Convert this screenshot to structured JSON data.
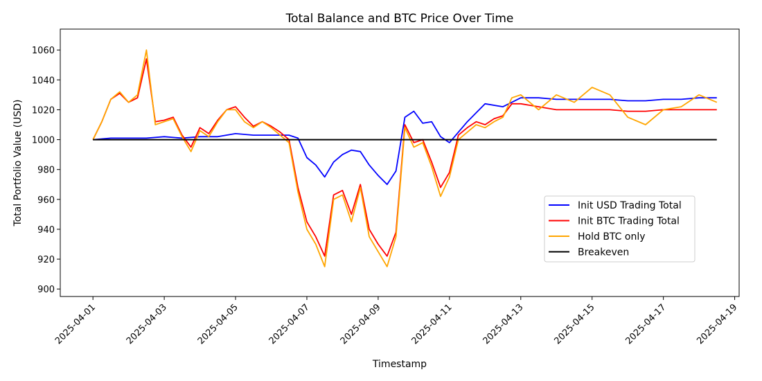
{
  "chart_data": {
    "type": "line",
    "title": "Total Balance and BTC Price Over Time",
    "xlabel": "Timestamp",
    "ylabel": "Total Portfolio Value (USD)",
    "x_axis": {
      "kind": "date",
      "min": "2025-03-31T02:00",
      "max": "2025-04-19T03:00",
      "ticks": [
        "2025-04-01",
        "2025-04-03",
        "2025-04-05",
        "2025-04-07",
        "2025-04-09",
        "2025-04-11",
        "2025-04-13",
        "2025-04-15",
        "2025-04-17",
        "2025-04-19"
      ]
    },
    "y_axis": {
      "min": 895,
      "max": 1074,
      "ticks": [
        900,
        920,
        940,
        960,
        980,
        1000,
        1020,
        1040,
        1060
      ]
    },
    "grid": false,
    "legend": {
      "placement": "lower-right"
    },
    "series": [
      {
        "name": "Init USD Trading Total",
        "color": "#0000ff",
        "x": [
          "2025-04-01T00:00",
          "2025-04-01T12:00",
          "2025-04-02T00:00",
          "2025-04-02T12:00",
          "2025-04-03T00:00",
          "2025-04-03T12:00",
          "2025-04-04T00:00",
          "2025-04-04T12:00",
          "2025-04-05T00:00",
          "2025-04-05T12:00",
          "2025-04-06T00:00",
          "2025-04-06T12:00",
          "2025-04-06T18:00",
          "2025-04-07T00:00",
          "2025-04-07T06:00",
          "2025-04-07T12:00",
          "2025-04-07T18:00",
          "2025-04-08T00:00",
          "2025-04-08T06:00",
          "2025-04-08T12:00",
          "2025-04-08T18:00",
          "2025-04-09T00:00",
          "2025-04-09T06:00",
          "2025-04-09T12:00",
          "2025-04-09T18:00",
          "2025-04-10T00:00",
          "2025-04-10T06:00",
          "2025-04-10T12:00",
          "2025-04-10T18:00",
          "2025-04-11T00:00",
          "2025-04-11T12:00",
          "2025-04-12T00:00",
          "2025-04-12T12:00",
          "2025-04-13T00:00",
          "2025-04-13T12:00",
          "2025-04-14T00:00",
          "2025-04-14T12:00",
          "2025-04-15T00:00",
          "2025-04-15T12:00",
          "2025-04-16T00:00",
          "2025-04-16T12:00",
          "2025-04-17T00:00",
          "2025-04-17T12:00",
          "2025-04-18T00:00",
          "2025-04-18T12:00"
        ],
        "y": [
          1000,
          1001,
          1001,
          1001,
          1002,
          1001,
          1002,
          1002,
          1004,
          1003,
          1003,
          1003,
          1001,
          988,
          983,
          975,
          985,
          990,
          993,
          992,
          983,
          976,
          970,
          979,
          1015,
          1019,
          1011,
          1012,
          1002,
          998,
          1012,
          1024,
          1022,
          1028,
          1028,
          1027,
          1027,
          1027,
          1027,
          1026,
          1026,
          1027,
          1027,
          1028,
          1028
        ]
      },
      {
        "name": "Init BTC Trading Total",
        "color": "#ff0000",
        "x": [
          "2025-04-01T00:00",
          "2025-04-01T06:00",
          "2025-04-01T12:00",
          "2025-04-01T18:00",
          "2025-04-02T00:00",
          "2025-04-02T06:00",
          "2025-04-02T12:00",
          "2025-04-02T18:00",
          "2025-04-03T00:00",
          "2025-04-03T06:00",
          "2025-04-03T12:00",
          "2025-04-03T18:00",
          "2025-04-04T00:00",
          "2025-04-04T06:00",
          "2025-04-04T12:00",
          "2025-04-04T18:00",
          "2025-04-05T00:00",
          "2025-04-05T06:00",
          "2025-04-05T12:00",
          "2025-04-05T18:00",
          "2025-04-06T00:00",
          "2025-04-06T06:00",
          "2025-04-06T12:00",
          "2025-04-06T18:00",
          "2025-04-07T00:00",
          "2025-04-07T06:00",
          "2025-04-07T12:00",
          "2025-04-07T18:00",
          "2025-04-08T00:00",
          "2025-04-08T06:00",
          "2025-04-08T12:00",
          "2025-04-08T18:00",
          "2025-04-09T00:00",
          "2025-04-09T06:00",
          "2025-04-09T12:00",
          "2025-04-09T18:00",
          "2025-04-10T00:00",
          "2025-04-10T06:00",
          "2025-04-10T12:00",
          "2025-04-10T18:00",
          "2025-04-11T00:00",
          "2025-04-11T06:00",
          "2025-04-11T12:00",
          "2025-04-11T18:00",
          "2025-04-12T00:00",
          "2025-04-12T06:00",
          "2025-04-12T12:00",
          "2025-04-12T18:00",
          "2025-04-13T00:00",
          "2025-04-13T12:00",
          "2025-04-14T00:00",
          "2025-04-14T12:00",
          "2025-04-15T00:00",
          "2025-04-15T12:00",
          "2025-04-16T00:00",
          "2025-04-16T12:00",
          "2025-04-17T00:00",
          "2025-04-17T12:00",
          "2025-04-18T00:00",
          "2025-04-18T12:00"
        ],
        "y": [
          1000,
          1012,
          1027,
          1031,
          1025,
          1028,
          1054,
          1012,
          1013,
          1015,
          1003,
          995,
          1008,
          1004,
          1013,
          1020,
          1022,
          1015,
          1009,
          1012,
          1009,
          1005,
          1000,
          968,
          945,
          935,
          922,
          963,
          966,
          950,
          970,
          940,
          930,
          922,
          938,
          1010,
          998,
          1000,
          985,
          968,
          978,
          1003,
          1008,
          1012,
          1010,
          1014,
          1016,
          1024,
          1024,
          1022,
          1020,
          1020,
          1020,
          1020,
          1019,
          1019,
          1020,
          1020,
          1020,
          1020
        ]
      },
      {
        "name": "Hold BTC only",
        "color": "#ffa500",
        "x": [
          "2025-04-01T00:00",
          "2025-04-01T06:00",
          "2025-04-01T12:00",
          "2025-04-01T18:00",
          "2025-04-02T00:00",
          "2025-04-02T06:00",
          "2025-04-02T12:00",
          "2025-04-02T18:00",
          "2025-04-03T00:00",
          "2025-04-03T06:00",
          "2025-04-03T12:00",
          "2025-04-03T18:00",
          "2025-04-04T00:00",
          "2025-04-04T06:00",
          "2025-04-04T12:00",
          "2025-04-04T18:00",
          "2025-04-05T00:00",
          "2025-04-05T06:00",
          "2025-04-05T12:00",
          "2025-04-05T18:00",
          "2025-04-06T00:00",
          "2025-04-06T06:00",
          "2025-04-06T12:00",
          "2025-04-06T18:00",
          "2025-04-07T00:00",
          "2025-04-07T06:00",
          "2025-04-07T12:00",
          "2025-04-07T18:00",
          "2025-04-08T00:00",
          "2025-04-08T06:00",
          "2025-04-08T12:00",
          "2025-04-08T18:00",
          "2025-04-09T00:00",
          "2025-04-09T06:00",
          "2025-04-09T12:00",
          "2025-04-09T18:00",
          "2025-04-10T00:00",
          "2025-04-10T06:00",
          "2025-04-10T12:00",
          "2025-04-10T18:00",
          "2025-04-11T00:00",
          "2025-04-11T06:00",
          "2025-04-11T12:00",
          "2025-04-11T18:00",
          "2025-04-12T00:00",
          "2025-04-12T06:00",
          "2025-04-12T12:00",
          "2025-04-12T18:00",
          "2025-04-13T00:00",
          "2025-04-13T12:00",
          "2025-04-14T00:00",
          "2025-04-14T12:00",
          "2025-04-15T00:00",
          "2025-04-15T12:00",
          "2025-04-16T00:00",
          "2025-04-16T12:00",
          "2025-04-17T00:00",
          "2025-04-17T12:00",
          "2025-04-18T00:00",
          "2025-04-18T12:00"
        ],
        "y": [
          1000,
          1012,
          1027,
          1032,
          1025,
          1030,
          1060,
          1010,
          1012,
          1014,
          1002,
          992,
          1006,
          1002,
          1012,
          1020,
          1020,
          1012,
          1008,
          1012,
          1008,
          1003,
          998,
          965,
          940,
          930,
          915,
          960,
          963,
          945,
          968,
          935,
          925,
          915,
          935,
          1008,
          995,
          998,
          982,
          962,
          975,
          1000,
          1005,
          1010,
          1008,
          1012,
          1015,
          1028,
          1030,
          1020,
          1030,
          1025,
          1035,
          1030,
          1015,
          1010,
          1020,
          1022,
          1030,
          1025
        ]
      },
      {
        "name": "Breakeven",
        "color": "#000000",
        "x": [
          "2025-04-01T00:00",
          "2025-04-18T12:00"
        ],
        "y": [
          1000,
          1000
        ]
      }
    ]
  }
}
